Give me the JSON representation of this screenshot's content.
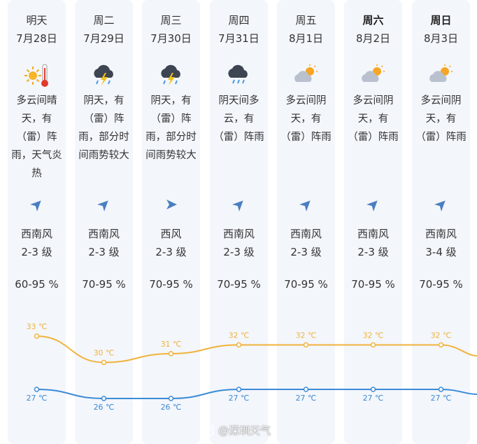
{
  "colors": {
    "high": "#f0b33c",
    "low": "#3b8bd6",
    "column_bg": "#f3f6fb",
    "arrow": "#4a7fc1"
  },
  "days": [
    {
      "day": "明天",
      "bold": false,
      "date": "7月28日",
      "icon": "sunny-hot-icon",
      "desc": [
        "多云间晴",
        "天，有",
        "（雷）阵",
        "雨，天气炎",
        "热"
      ],
      "wind_dir": "西南风",
      "wind_level": "2-3 级",
      "arrow_angle": -45,
      "humidity": "60-95 %",
      "high": 33,
      "high_label": "33 ℃",
      "low": 27,
      "low_label": "27 ℃"
    },
    {
      "day": "周二",
      "bold": false,
      "date": "7月29日",
      "icon": "thunderstorm-icon",
      "desc": [
        "阴天，有",
        "（雷）阵",
        "雨，部分时",
        "间雨势较大"
      ],
      "wind_dir": "西南风",
      "wind_level": "2-3 级",
      "arrow_angle": -45,
      "humidity": "70-95 %",
      "high": 30,
      "high_label": "30 ℃",
      "low": 26,
      "low_label": "26 ℃"
    },
    {
      "day": "周三",
      "bold": false,
      "date": "7月30日",
      "icon": "thunderstorm-icon",
      "desc": [
        "阴天，有",
        "（雷）阵",
        "雨，部分时",
        "间雨势较大"
      ],
      "wind_dir": "西风",
      "wind_level": "2-3 级",
      "arrow_angle": 0,
      "humidity": "70-95 %",
      "high": 31,
      "high_label": "31 ℃",
      "low": 26,
      "low_label": "26 ℃"
    },
    {
      "day": "周四",
      "bold": false,
      "date": "7月31日",
      "icon": "rain-cloud-icon",
      "desc": [
        "阴天间多",
        "云，有",
        "（雷）阵雨"
      ],
      "wind_dir": "西南风",
      "wind_level": "2-3 级",
      "arrow_angle": -45,
      "humidity": "70-95 %",
      "high": 32,
      "high_label": "32 ℃",
      "low": 27,
      "low_label": "27 ℃"
    },
    {
      "day": "周五",
      "bold": false,
      "date": "8月1日",
      "icon": "partly-cloudy-icon",
      "desc": [
        "多云间阴",
        "天，有",
        "（雷）阵雨"
      ],
      "wind_dir": "西南风",
      "wind_level": "2-3 级",
      "arrow_angle": -45,
      "humidity": "70-95 %",
      "high": 32,
      "high_label": "32 ℃",
      "low": 27,
      "low_label": "27 ℃"
    },
    {
      "day": "周六",
      "bold": true,
      "date": "8月2日",
      "icon": "partly-cloudy-icon",
      "desc": [
        "多云间阴",
        "天，有",
        "（雷）阵雨"
      ],
      "wind_dir": "西南风",
      "wind_level": "2-3 级",
      "arrow_angle": -45,
      "humidity": "70-95 %",
      "high": 32,
      "high_label": "32 ℃",
      "low": 27,
      "low_label": "27 ℃"
    },
    {
      "day": "周日",
      "bold": true,
      "date": "8月3日",
      "icon": "partly-cloudy-icon",
      "desc": [
        "多云间阴",
        "天，有",
        "（雷）阵雨"
      ],
      "wind_dir": "西南风",
      "wind_level": "3-4 级",
      "arrow_angle": -45,
      "humidity": "70-95 %",
      "high": 32,
      "high_label": "32 ℃",
      "low": 27,
      "low_label": "27 ℃"
    }
  ],
  "watermark": "@深圳天气"
}
